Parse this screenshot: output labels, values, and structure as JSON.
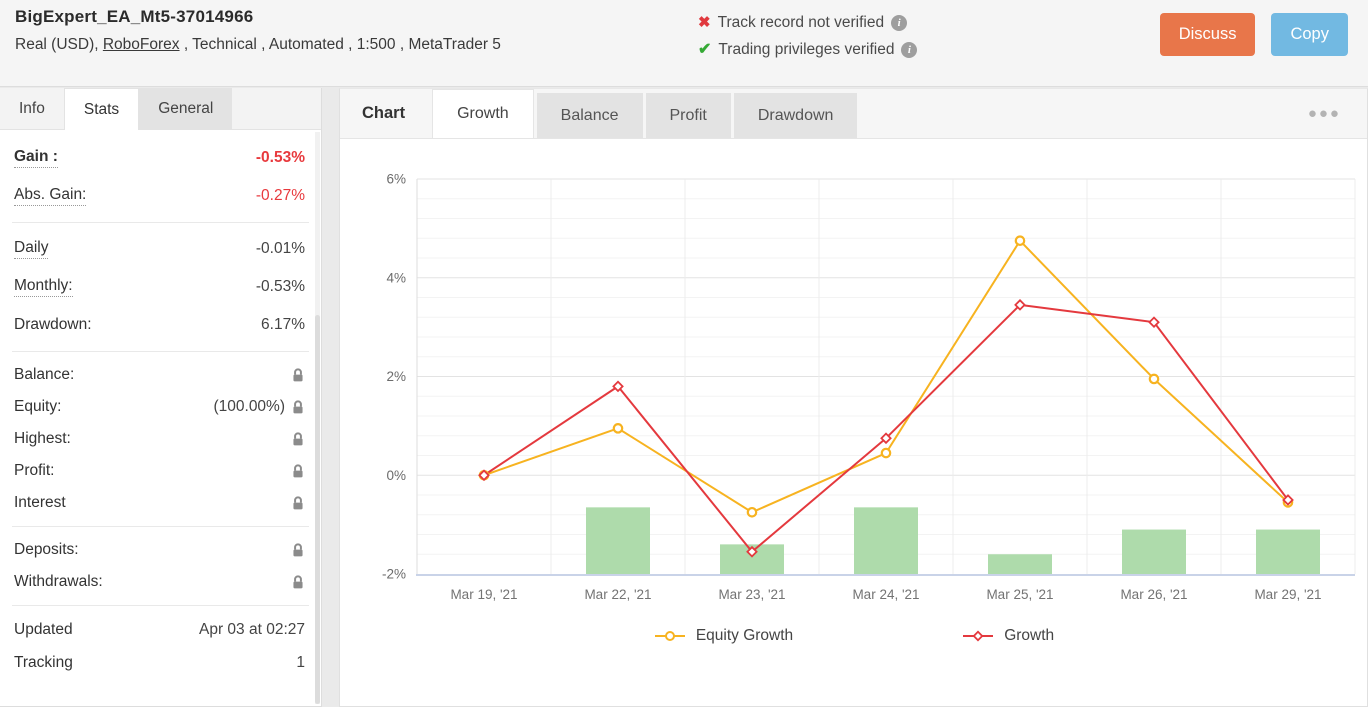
{
  "header": {
    "title": "BigExpert_EA_Mt5-37014966",
    "subtitle_prefix": "Real (USD), ",
    "broker_link": "RoboForex",
    "subtitle_suffix": " , Technical , Automated , 1:500 , MetaTrader 5",
    "verification": [
      {
        "key": "track-record",
        "icon": "x",
        "glyph": "✖",
        "text": "Track record not verified"
      },
      {
        "key": "trading-privileges",
        "icon": "check",
        "glyph": "✔",
        "text": "Trading privileges verified"
      }
    ],
    "buttons": {
      "discuss": "Discuss",
      "copy": "Copy"
    }
  },
  "sidebar": {
    "tabs": [
      {
        "key": "info",
        "label": "Info",
        "active": false,
        "gray": false
      },
      {
        "key": "stats",
        "label": "Stats",
        "active": true,
        "gray": false
      },
      {
        "key": "general",
        "label": "General",
        "active": false,
        "gray": true
      }
    ],
    "groups": [
      {
        "rows": [
          {
            "key": "gain",
            "label": "Gain :",
            "label_style": "bold dotted",
            "value": "-0.53%",
            "value_style": "red bold"
          },
          {
            "key": "abs-gain",
            "label": "Abs. Gain:",
            "label_style": "dotted",
            "value": "-0.27%",
            "value_style": "red"
          }
        ]
      },
      {
        "rows": [
          {
            "key": "daily",
            "label": "Daily",
            "label_style": "dotted",
            "value": "-0.01%"
          },
          {
            "key": "monthly",
            "label": "Monthly:",
            "label_style": "dotted",
            "value": "-0.53%"
          },
          {
            "key": "drawdown",
            "label": "Drawdown:",
            "value": "6.17%"
          }
        ]
      },
      {
        "rows": [
          {
            "key": "balance",
            "label": "Balance:",
            "lock": true
          },
          {
            "key": "equity",
            "label": "Equity:",
            "value": "(100.00%)",
            "lock": true
          },
          {
            "key": "highest",
            "label": "Highest:",
            "lock": true
          },
          {
            "key": "profit",
            "label": "Profit:",
            "lock": true
          },
          {
            "key": "interest",
            "label": "Interest",
            "lock": true
          }
        ]
      },
      {
        "rows": [
          {
            "key": "deposits",
            "label": "Deposits:",
            "lock": true
          },
          {
            "key": "withdrawals",
            "label": "Withdrawals:",
            "lock": true
          }
        ]
      },
      {
        "rows": [
          {
            "key": "updated",
            "label": "Updated",
            "value": "Apr 03 at 02:27"
          },
          {
            "key": "tracking",
            "label": "Tracking",
            "value": "1"
          }
        ]
      }
    ]
  },
  "chart_panel": {
    "label": "Chart",
    "tabs": [
      {
        "key": "growth",
        "label": "Growth",
        "active": true
      },
      {
        "key": "balance",
        "label": "Balance",
        "active": false
      },
      {
        "key": "profit",
        "label": "Profit",
        "active": false
      },
      {
        "key": "drawdown",
        "label": "Drawdown",
        "active": false
      }
    ],
    "menu_icon": "●●●"
  },
  "chart_data": {
    "type": "line+bar",
    "title": "",
    "categories": [
      "Mar 19, '21",
      "Mar 22, '21",
      "Mar 23, '21",
      "Mar 24, '21",
      "Mar 25, '21",
      "Mar 26, '21",
      "Mar 29, '21"
    ],
    "series": [
      {
        "key": "equity-growth",
        "name": "Equity Growth",
        "color": "#f7b320",
        "marker": "circle",
        "values": [
          0,
          0.95,
          -0.75,
          0.45,
          4.75,
          1.95,
          -0.55
        ]
      },
      {
        "key": "growth",
        "name": "Growth",
        "color": "#e4393e",
        "marker": "diamond",
        "values": [
          0,
          1.8,
          -1.55,
          0.75,
          3.45,
          3.1,
          -0.5
        ]
      }
    ],
    "bars": {
      "color": "#aedbab",
      "baseline": -2,
      "top_values": [
        null,
        -0.65,
        -1.4,
        -0.65,
        -1.6,
        -1.1,
        -1.1
      ]
    },
    "ylim": [
      -2,
      6
    ],
    "yticks": [
      {
        "value": 6,
        "label": "6%"
      },
      {
        "value": 4,
        "label": "4%"
      },
      {
        "value": 2,
        "label": "2%"
      },
      {
        "value": 0,
        "label": "0%"
      },
      {
        "value": -2,
        "label": "-2%"
      }
    ],
    "minor_step": 0.4,
    "grid": true,
    "legend_position": "bottom",
    "ylabel": "",
    "xlabel": ""
  },
  "colors": {
    "gain_negative": "#e8393d",
    "discuss_button": "#e8764a",
    "copy_button": "#72b9e2",
    "bar_green": "#aedbab",
    "equity_line": "#f7b320",
    "growth_line": "#e4393e"
  }
}
